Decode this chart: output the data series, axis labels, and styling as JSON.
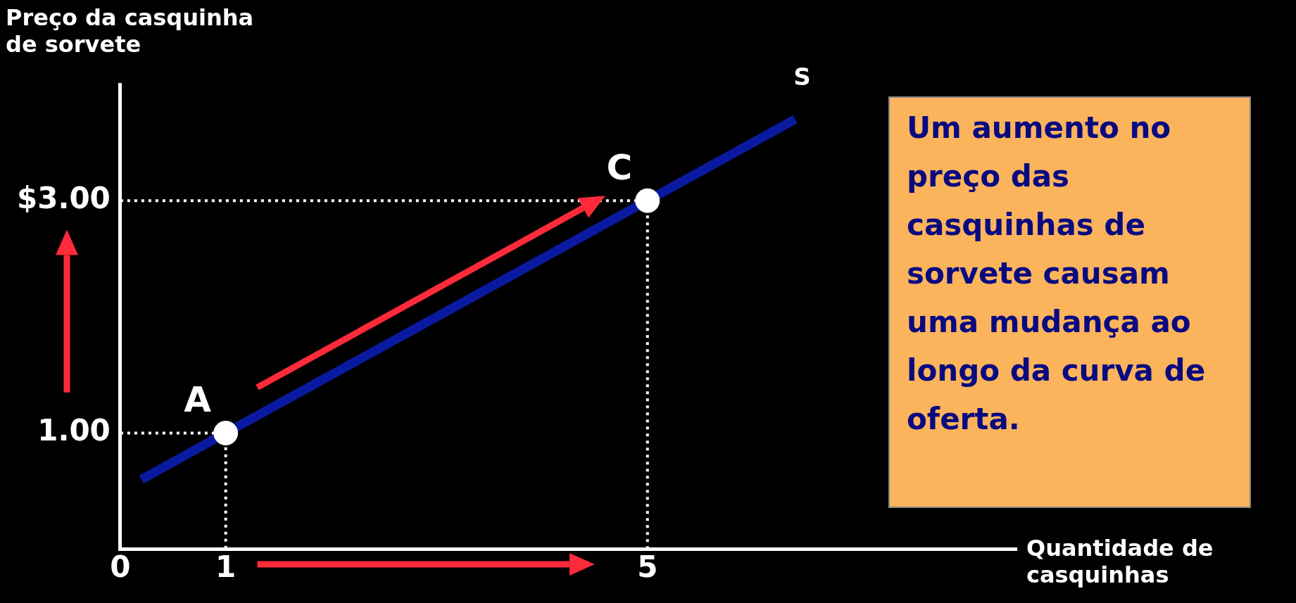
{
  "chart_data": {
    "type": "line",
    "xlabel": "Quantidade de casquinhas",
    "ylabel": "Preço da casquinha de sorvete",
    "xlim": [
      0,
      8.5
    ],
    "xticks": [
      0,
      1,
      5
    ],
    "ylim": [
      0,
      4
    ],
    "yticks": [
      {
        "value": 1,
        "label": "1.00"
      },
      {
        "value": 3,
        "label": "$3.00"
      }
    ],
    "grid": false,
    "legend": false,
    "series": [
      {
        "name": "S",
        "color": "#0a1aa0",
        "x": [
          0.2,
          6.4
        ],
        "values": [
          0.6,
          3.7
        ]
      },
      {
        "type": "line",
        "color": "#ffffff",
        "x": [
          0,
          1,
          1
        ],
        "values": [
          1,
          1,
          0
        ],
        "line_style": "dotted"
      },
      {
        "type": "line",
        "color": "#ffffff",
        "x": [
          0,
          5,
          5
        ],
        "values": [
          3,
          3,
          0
        ],
        "line_style": "dotted"
      },
      {
        "type": "scatter",
        "color": "#ffffff",
        "x": [
          1,
          5
        ],
        "values": [
          1,
          3
        ],
        "marker": "circle"
      }
    ],
    "annotations": [
      {
        "text": "A",
        "x": 1,
        "y": 1
      },
      {
        "text": "C",
        "x": 5,
        "y": 3
      },
      "Um aumento no preço das casquinhas de sorvete causam uma mudança ao longo da curva de oferta."
    ]
  }
}
